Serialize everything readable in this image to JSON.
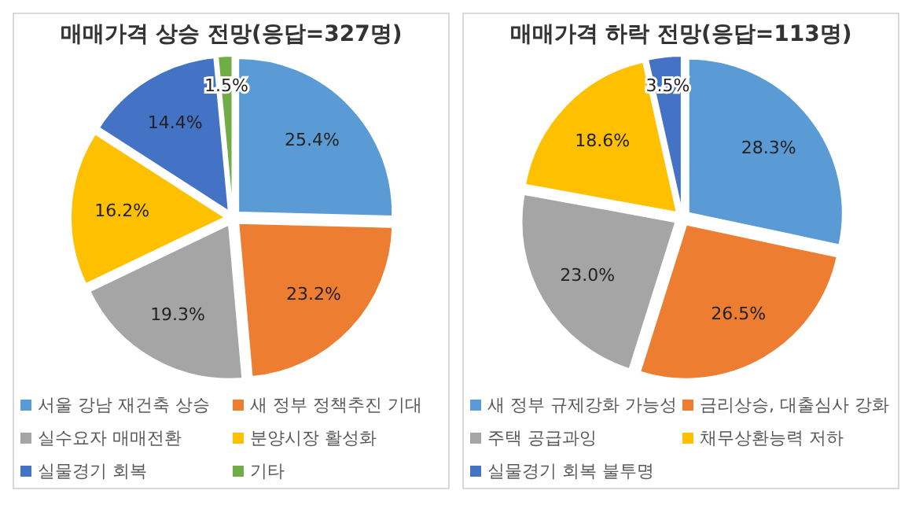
{
  "chart_data": [
    {
      "type": "pie",
      "title": "매매가격 상승 전망(응답=327명)",
      "categories": [
        "서울 강남 재건축 상승",
        "새 정부 정책추진 기대",
        "실수요자 매매전환",
        "분양시장 활성화",
        "실물경기 회복",
        "기타"
      ],
      "values": [
        25.4,
        23.2,
        19.3,
        16.2,
        14.4,
        1.5
      ],
      "colors": [
        "#5b9bd5",
        "#ed7d31",
        "#a5a5a5",
        "#ffc000",
        "#4472c4",
        "#70ad47"
      ],
      "value_labels": [
        "25.4%",
        "23.2%",
        "19.3%",
        "16.2%",
        "14.4%",
        "1.5%"
      ],
      "legend": "bottom"
    },
    {
      "type": "pie",
      "title": "매매가격 하락 전망(응답=113명)",
      "categories": [
        "새 정부 규제강화 가능성",
        "금리상승, 대출심사 강화",
        "주택 공급과잉",
        "채무상환능력 저하",
        "실물경기 회복 불투명"
      ],
      "values": [
        28.3,
        26.5,
        23.0,
        18.6,
        3.5
      ],
      "colors": [
        "#5b9bd5",
        "#ed7d31",
        "#a5a5a5",
        "#ffc000",
        "#4472c4"
      ],
      "value_labels": [
        "28.3%",
        "26.5%",
        "23.0%",
        "18.6%",
        "3.5%"
      ],
      "legend": "bottom"
    }
  ]
}
